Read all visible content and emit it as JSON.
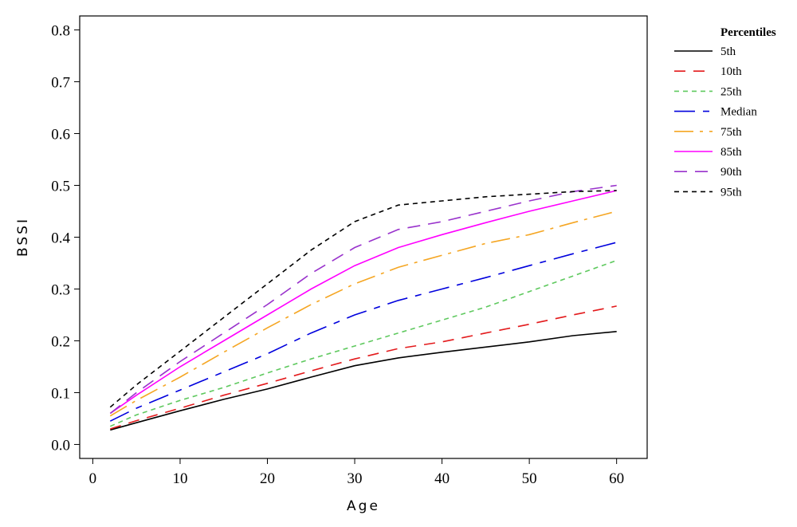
{
  "chart_data": {
    "type": "line",
    "title": "",
    "xlabel": "Age",
    "ylabel": "BSSI",
    "xlim": [
      -1.5,
      63.5
    ],
    "ylim": [
      -0.027,
      0.827
    ],
    "xticks": [
      0,
      10,
      20,
      30,
      40,
      50,
      60
    ],
    "xtick_labels": [
      "0",
      "10",
      "20",
      "30",
      "40",
      "50",
      "60"
    ],
    "yticks": [
      0.0,
      0.1,
      0.2,
      0.3,
      0.4,
      0.5,
      0.6,
      0.7,
      0.8
    ],
    "ytick_labels": [
      "0.0",
      "0.1",
      "0.2",
      "0.3",
      "0.4",
      "0.5",
      "0.6",
      "0.7",
      "0.8"
    ],
    "grid": false,
    "legend": {
      "title": "Percentiles",
      "placement": "outside-right"
    },
    "x": [
      2,
      5,
      10,
      15,
      20,
      25,
      30,
      35,
      40,
      45,
      50,
      55,
      60
    ],
    "series": [
      {
        "name": "5th",
        "color": "#000000",
        "dash": "",
        "values": [
          0.028,
          0.042,
          0.065,
          0.087,
          0.107,
          0.13,
          0.152,
          0.167,
          0.178,
          0.188,
          0.198,
          0.21,
          0.218
        ]
      },
      {
        "name": "10th",
        "color": "#e31a1c",
        "dash": "14 10",
        "values": [
          0.03,
          0.046,
          0.07,
          0.095,
          0.118,
          0.142,
          0.165,
          0.185,
          0.198,
          0.215,
          0.232,
          0.25,
          0.267
        ]
      },
      {
        "name": "25th",
        "color": "#5fc95f",
        "dash": "6 5",
        "values": [
          0.035,
          0.057,
          0.085,
          0.11,
          0.138,
          0.165,
          0.19,
          0.215,
          0.24,
          0.265,
          0.295,
          0.325,
          0.355
        ]
      },
      {
        "name": "Median",
        "color": "#0000dd",
        "dash": "26 10 8 10",
        "values": [
          0.045,
          0.07,
          0.105,
          0.14,
          0.175,
          0.215,
          0.25,
          0.278,
          0.3,
          0.322,
          0.345,
          0.368,
          0.39
        ]
      },
      {
        "name": "75th",
        "color": "#f5a623",
        "dash": "24 8 4 8",
        "values": [
          0.055,
          0.085,
          0.13,
          0.178,
          0.225,
          0.27,
          0.31,
          0.342,
          0.365,
          0.388,
          0.405,
          0.428,
          0.45
        ]
      },
      {
        "name": "85th",
        "color": "#ff00ff",
        "dash": "",
        "values": [
          0.06,
          0.095,
          0.15,
          0.2,
          0.25,
          0.3,
          0.345,
          0.38,
          0.405,
          0.428,
          0.45,
          0.47,
          0.49
        ]
      },
      {
        "name": "90th",
        "color": "#9932cc",
        "dash": "16 10",
        "values": [
          0.06,
          0.1,
          0.16,
          0.215,
          0.27,
          0.33,
          0.38,
          0.415,
          0.43,
          0.45,
          0.47,
          0.488,
          0.5
        ]
      },
      {
        "name": "95th",
        "color": "#000000",
        "dash": "6 5",
        "values": [
          0.072,
          0.115,
          0.18,
          0.245,
          0.31,
          0.375,
          0.43,
          0.462,
          0.47,
          0.478,
          0.483,
          0.488,
          0.49
        ]
      }
    ]
  }
}
